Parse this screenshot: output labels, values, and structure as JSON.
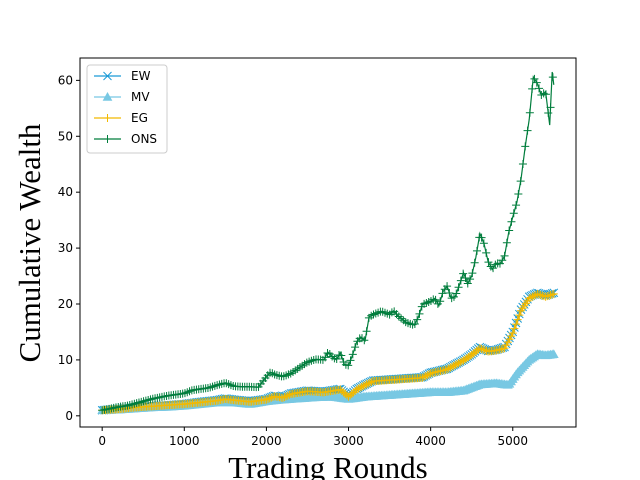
{
  "chart_data": {
    "type": "line",
    "title": "",
    "xlabel": "Trading Rounds",
    "ylabel": "Cumulative Wealth",
    "xlim": [
      -270,
      5770
    ],
    "ylim": [
      -2,
      64
    ],
    "xticks": [
      0,
      1000,
      2000,
      3000,
      4000,
      5000
    ],
    "yticks": [
      0,
      10,
      20,
      30,
      40,
      50,
      60
    ],
    "grid": false,
    "legend_position": "top-left",
    "series": [
      {
        "name": "EW",
        "color": "#1a9ad6",
        "marker": "x",
        "points": [
          [
            0,
            1.0
          ],
          [
            200,
            1.2
          ],
          [
            400,
            1.5
          ],
          [
            600,
            1.7
          ],
          [
            800,
            1.9
          ],
          [
            1000,
            2.1
          ],
          [
            1200,
            2.5
          ],
          [
            1400,
            2.8
          ],
          [
            1500,
            3.1
          ],
          [
            1600,
            2.9
          ],
          [
            1800,
            2.6
          ],
          [
            2000,
            3.0
          ],
          [
            2100,
            3.6
          ],
          [
            2200,
            3.3
          ],
          [
            2300,
            4.0
          ],
          [
            2500,
            4.5
          ],
          [
            2700,
            4.3
          ],
          [
            2900,
            4.8
          ],
          [
            3000,
            3.5
          ],
          [
            3100,
            4.8
          ],
          [
            3200,
            5.6
          ],
          [
            3300,
            6.3
          ],
          [
            3500,
            6.5
          ],
          [
            3700,
            6.7
          ],
          [
            3900,
            6.9
          ],
          [
            4000,
            7.7
          ],
          [
            4200,
            8.4
          ],
          [
            4300,
            9.2
          ],
          [
            4400,
            10.0
          ],
          [
            4500,
            11.0
          ],
          [
            4600,
            12.3
          ],
          [
            4700,
            11.6
          ],
          [
            4800,
            11.8
          ],
          [
            4900,
            12.3
          ],
          [
            5000,
            15.0
          ],
          [
            5100,
            19.0
          ],
          [
            5200,
            21.3
          ],
          [
            5300,
            22.0
          ],
          [
            5400,
            21.5
          ],
          [
            5500,
            22.0
          ]
        ]
      },
      {
        "name": "MV",
        "color": "#78c8e3",
        "marker": "triangle",
        "points": [
          [
            0,
            1.0
          ],
          [
            200,
            1.1
          ],
          [
            400,
            1.3
          ],
          [
            600,
            1.5
          ],
          [
            800,
            1.6
          ],
          [
            1000,
            1.8
          ],
          [
            1200,
            2.1
          ],
          [
            1400,
            2.4
          ],
          [
            1600,
            2.4
          ],
          [
            1800,
            2.1
          ],
          [
            2000,
            2.6
          ],
          [
            2200,
            2.9
          ],
          [
            2400,
            3.1
          ],
          [
            2600,
            3.3
          ],
          [
            2800,
            3.4
          ],
          [
            3000,
            3.0
          ],
          [
            3200,
            3.4
          ],
          [
            3400,
            3.6
          ],
          [
            3600,
            3.8
          ],
          [
            3800,
            4.0
          ],
          [
            4000,
            4.2
          ],
          [
            4200,
            4.2
          ],
          [
            4400,
            4.5
          ],
          [
            4600,
            5.6
          ],
          [
            4800,
            5.8
          ],
          [
            4950,
            5.5
          ],
          [
            5050,
            7.6
          ],
          [
            5200,
            10.0
          ],
          [
            5300,
            11.0
          ],
          [
            5400,
            10.8
          ],
          [
            5500,
            11.0
          ]
        ]
      },
      {
        "name": "EG",
        "color": "#f2b900",
        "marker": "plus",
        "points": [
          [
            0,
            1.0
          ],
          [
            200,
            1.2
          ],
          [
            400,
            1.5
          ],
          [
            600,
            1.7
          ],
          [
            800,
            1.9
          ],
          [
            1000,
            2.1
          ],
          [
            1200,
            2.4
          ],
          [
            1400,
            2.7
          ],
          [
            1500,
            3.0
          ],
          [
            1600,
            2.8
          ],
          [
            1800,
            2.5
          ],
          [
            2000,
            2.9
          ],
          [
            2100,
            3.5
          ],
          [
            2200,
            3.2
          ],
          [
            2300,
            3.9
          ],
          [
            2500,
            4.4
          ],
          [
            2700,
            4.2
          ],
          [
            2900,
            4.7
          ],
          [
            3000,
            3.4
          ],
          [
            3100,
            4.7
          ],
          [
            3200,
            5.5
          ],
          [
            3300,
            6.2
          ],
          [
            3500,
            6.4
          ],
          [
            3700,
            6.6
          ],
          [
            3900,
            6.8
          ],
          [
            4000,
            7.6
          ],
          [
            4200,
            8.3
          ],
          [
            4300,
            9.1
          ],
          [
            4400,
            9.9
          ],
          [
            4500,
            10.9
          ],
          [
            4600,
            12.1
          ],
          [
            4700,
            11.5
          ],
          [
            4800,
            11.7
          ],
          [
            4900,
            12.1
          ],
          [
            5000,
            14.8
          ],
          [
            5100,
            18.8
          ],
          [
            5200,
            21.0
          ],
          [
            5300,
            21.8
          ],
          [
            5400,
            21.3
          ],
          [
            5500,
            21.8
          ]
        ]
      },
      {
        "name": "ONS",
        "color": "#007d3c",
        "marker": "plus",
        "points": [
          [
            0,
            1.0
          ],
          [
            100,
            1.3
          ],
          [
            200,
            1.6
          ],
          [
            300,
            1.8
          ],
          [
            400,
            2.2
          ],
          [
            500,
            2.6
          ],
          [
            600,
            3.0
          ],
          [
            700,
            3.3
          ],
          [
            800,
            3.6
          ],
          [
            900,
            3.8
          ],
          [
            1000,
            4.0
          ],
          [
            1100,
            4.6
          ],
          [
            1200,
            4.8
          ],
          [
            1300,
            5.0
          ],
          [
            1400,
            5.5
          ],
          [
            1500,
            5.9
          ],
          [
            1600,
            5.3
          ],
          [
            1700,
            5.2
          ],
          [
            1800,
            5.2
          ],
          [
            1900,
            5.1
          ],
          [
            2000,
            7.0
          ],
          [
            2050,
            7.8
          ],
          [
            2100,
            7.4
          ],
          [
            2200,
            7.0
          ],
          [
            2300,
            7.6
          ],
          [
            2400,
            8.6
          ],
          [
            2500,
            9.6
          ],
          [
            2600,
            10.1
          ],
          [
            2700,
            10.0
          ],
          [
            2750,
            11.4
          ],
          [
            2800,
            10.6
          ],
          [
            2850,
            10.0
          ],
          [
            2900,
            11.3
          ],
          [
            2950,
            9.2
          ],
          [
            3000,
            9.0
          ],
          [
            3050,
            10.9
          ],
          [
            3100,
            13.2
          ],
          [
            3150,
            14.1
          ],
          [
            3200,
            13.4
          ],
          [
            3250,
            17.7
          ],
          [
            3300,
            18.1
          ],
          [
            3400,
            18.7
          ],
          [
            3500,
            18.1
          ],
          [
            3550,
            18.8
          ],
          [
            3600,
            17.9
          ],
          [
            3700,
            16.7
          ],
          [
            3800,
            16.2
          ],
          [
            3850,
            17.6
          ],
          [
            3900,
            19.9
          ],
          [
            4000,
            20.5
          ],
          [
            4050,
            21.0
          ],
          [
            4100,
            19.7
          ],
          [
            4150,
            22.2
          ],
          [
            4200,
            23.2
          ],
          [
            4250,
            21.0
          ],
          [
            4300,
            21.4
          ],
          [
            4350,
            23.4
          ],
          [
            4400,
            25.6
          ],
          [
            4450,
            23.6
          ],
          [
            4500,
            25.0
          ],
          [
            4550,
            28.3
          ],
          [
            4600,
            32.6
          ],
          [
            4650,
            30.8
          ],
          [
            4700,
            27.6
          ],
          [
            4750,
            26.2
          ],
          [
            4800,
            27.3
          ],
          [
            4850,
            27.2
          ],
          [
            4900,
            28.6
          ],
          [
            4950,
            32.8
          ],
          [
            5000,
            35.6
          ],
          [
            5050,
            38.2
          ],
          [
            5100,
            42.3
          ],
          [
            5150,
            48.0
          ],
          [
            5200,
            53.0
          ],
          [
            5250,
            60.6
          ],
          [
            5300,
            59.4
          ],
          [
            5350,
            57.3
          ],
          [
            5400,
            58.0
          ],
          [
            5450,
            52.0
          ],
          [
            5480,
            61.5
          ],
          [
            5500,
            59.2
          ]
        ]
      }
    ]
  }
}
